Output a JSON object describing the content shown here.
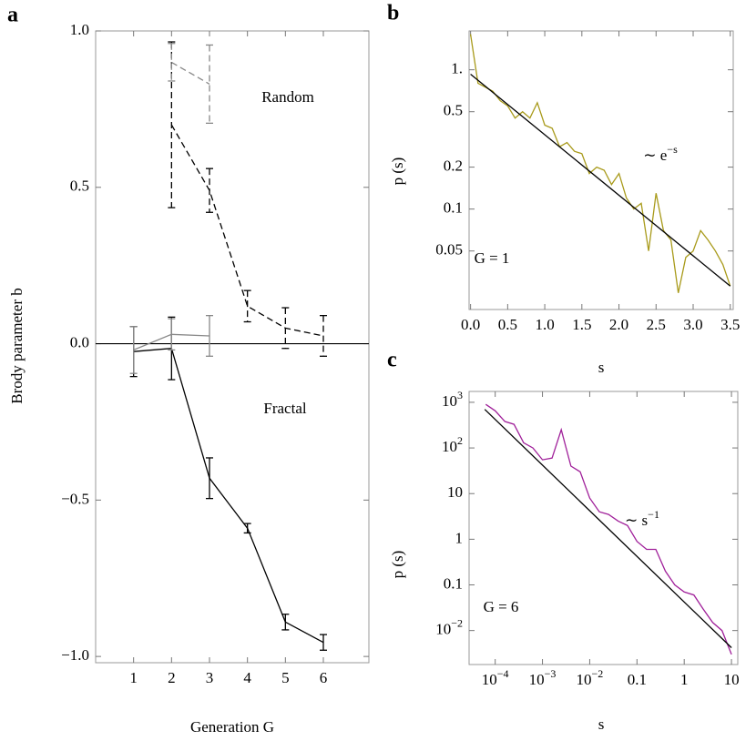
{
  "chart_data": [
    {
      "panel": "a",
      "type": "line",
      "xlabel": "Generation G",
      "ylabel": "Brody parameter b",
      "xlim": [
        0,
        7.2
      ],
      "ylim": [
        -1.02,
        1.0
      ],
      "xticks": [
        1,
        2,
        3,
        4,
        5,
        6
      ],
      "yticks": [
        {
          "value": -1.0,
          "label": "−1.0"
        },
        {
          "value": -0.5,
          "label": "−0.5"
        },
        {
          "value": 0.0,
          "label": "0.0"
        },
        0.5,
        {
          "value": 1.0,
          "label": "1.0"
        }
      ],
      "annotations": [
        {
          "text": "Random"
        },
        {
          "text": "Fractal"
        }
      ],
      "series": [
        {
          "color": "#000000",
          "dash": false,
          "x": [
            1,
            2,
            3,
            4,
            5,
            6
          ],
          "values": [
            -0.025,
            -0.015,
            -0.43,
            -0.59,
            -0.89,
            -0.955
          ],
          "errors": [
            0.08,
            0.1,
            0.065,
            0.015,
            0.025,
            0.025
          ]
        },
        {
          "color": "#888888",
          "dash": false,
          "x": [
            1,
            2,
            3
          ],
          "values": [
            -0.02,
            0.03,
            0.025
          ],
          "errors": [
            0.075,
            0.05,
            0.065
          ]
        },
        {
          "color": "#000000",
          "dash": true,
          "x": [
            2,
            3,
            4,
            5,
            6
          ],
          "values": [
            0.7,
            0.49,
            0.12,
            0.05,
            0.025
          ],
          "errors": [
            0.265,
            0.07,
            0.05,
            0.065,
            0.065
          ]
        },
        {
          "color": "#888888",
          "dash": true,
          "x": [
            2,
            3
          ],
          "values": [
            0.9,
            0.83
          ],
          "errors": [
            0.06,
            0.125
          ]
        }
      ]
    },
    {
      "panel": "b",
      "type": "line",
      "xlabel": "s",
      "ylabel": "p (s)",
      "ylog": true,
      "xlim": [
        -0.02,
        3.54
      ],
      "ylim": [
        0.019,
        1.9
      ],
      "xticks": [
        {
          "value": 0,
          "label": "0.0"
        },
        0.5,
        {
          "value": 1,
          "label": "1.0"
        },
        1.5,
        {
          "value": 2,
          "label": "2.0"
        },
        2.5,
        {
          "value": 3,
          "label": "3.0"
        },
        3.5
      ],
      "yticks": [
        0.05,
        0.1,
        0.2,
        0.5,
        {
          "value": 1,
          "label": "1."
        }
      ],
      "annotations": [
        {
          "text": "∼ e",
          "sup": "−s"
        },
        {
          "text": "G = 1"
        }
      ],
      "series": [
        {
          "color": "#a89a1a",
          "dash": false,
          "x": [
            0,
            0.1,
            0.2,
            0.3,
            0.4,
            0.5,
            0.6,
            0.7,
            0.8,
            0.9,
            1.0,
            1.1,
            1.2,
            1.3,
            1.4,
            1.5,
            1.6,
            1.7,
            1.8,
            1.9,
            2.0,
            2.1,
            2.2,
            2.3,
            2.4,
            2.5,
            2.6,
            2.7,
            2.8,
            2.9,
            3.0,
            3.1,
            3.2,
            3.3,
            3.4,
            3.5
          ],
          "values": [
            1.8,
            0.8,
            0.75,
            0.7,
            0.6,
            0.55,
            0.45,
            0.5,
            0.45,
            0.58,
            0.4,
            0.38,
            0.28,
            0.3,
            0.26,
            0.25,
            0.18,
            0.2,
            0.19,
            0.15,
            0.18,
            0.12,
            0.1,
            0.11,
            0.05,
            0.13,
            0.07,
            0.06,
            0.025,
            0.045,
            0.05,
            0.07,
            0.06,
            0.05,
            0.04,
            0.028
          ]
        },
        {
          "color": "#000000",
          "dash": false,
          "x": [
            0,
            3.5
          ],
          "values": [
            0.93,
            0.028
          ]
        }
      ]
    },
    {
      "panel": "c",
      "type": "line",
      "xlabel": "s",
      "ylabel": "p (s)",
      "xlog": true,
      "ylog": true,
      "xlim": [
        2.8e-05,
        13.6
      ],
      "ylim": [
        0.0018,
        1730
      ],
      "xticks": [
        {
          "value": 0.0001,
          "label": "10",
          "sup": "−4"
        },
        {
          "value": 0.001,
          "label": "10",
          "sup": "−3"
        },
        {
          "value": 0.01,
          "label": "10",
          "sup": "−2"
        },
        0.1,
        1,
        10
      ],
      "yticks": [
        {
          "value": 0.01,
          "label": "10",
          "sup": "−2"
        },
        0.1,
        1,
        10,
        {
          "value": 100,
          "label": "10",
          "sup": "2"
        },
        {
          "value": 1000,
          "label": "10",
          "sup": "3"
        }
      ],
      "annotations": [
        {
          "text": "∼ s",
          "sup": "−1"
        },
        {
          "text": "G = 6"
        }
      ],
      "series": [
        {
          "color": "#a0209a",
          "dash": false,
          "x": [
            6.3e-05,
            0.0001,
            0.00016,
            0.00025,
            0.0004,
            0.00063,
            0.001,
            0.0016,
            0.0025,
            0.004,
            0.0063,
            0.01,
            0.016,
            0.025,
            0.04,
            0.063,
            0.1,
            0.16,
            0.25,
            0.4,
            0.63,
            1,
            1.6,
            2.5,
            4,
            6.3,
            10
          ],
          "values": [
            900,
            650,
            380,
            330,
            130,
            100,
            55,
            60,
            250,
            40,
            30,
            8,
            4,
            3.5,
            2.5,
            2,
            0.9,
            0.6,
            0.6,
            0.2,
            0.1,
            0.07,
            0.06,
            0.03,
            0.015,
            0.01,
            0.003
          ]
        },
        {
          "color": "#000000",
          "dash": false,
          "x": [
            6e-05,
            10
          ],
          "values": [
            700,
            0.0042
          ]
        }
      ]
    }
  ]
}
